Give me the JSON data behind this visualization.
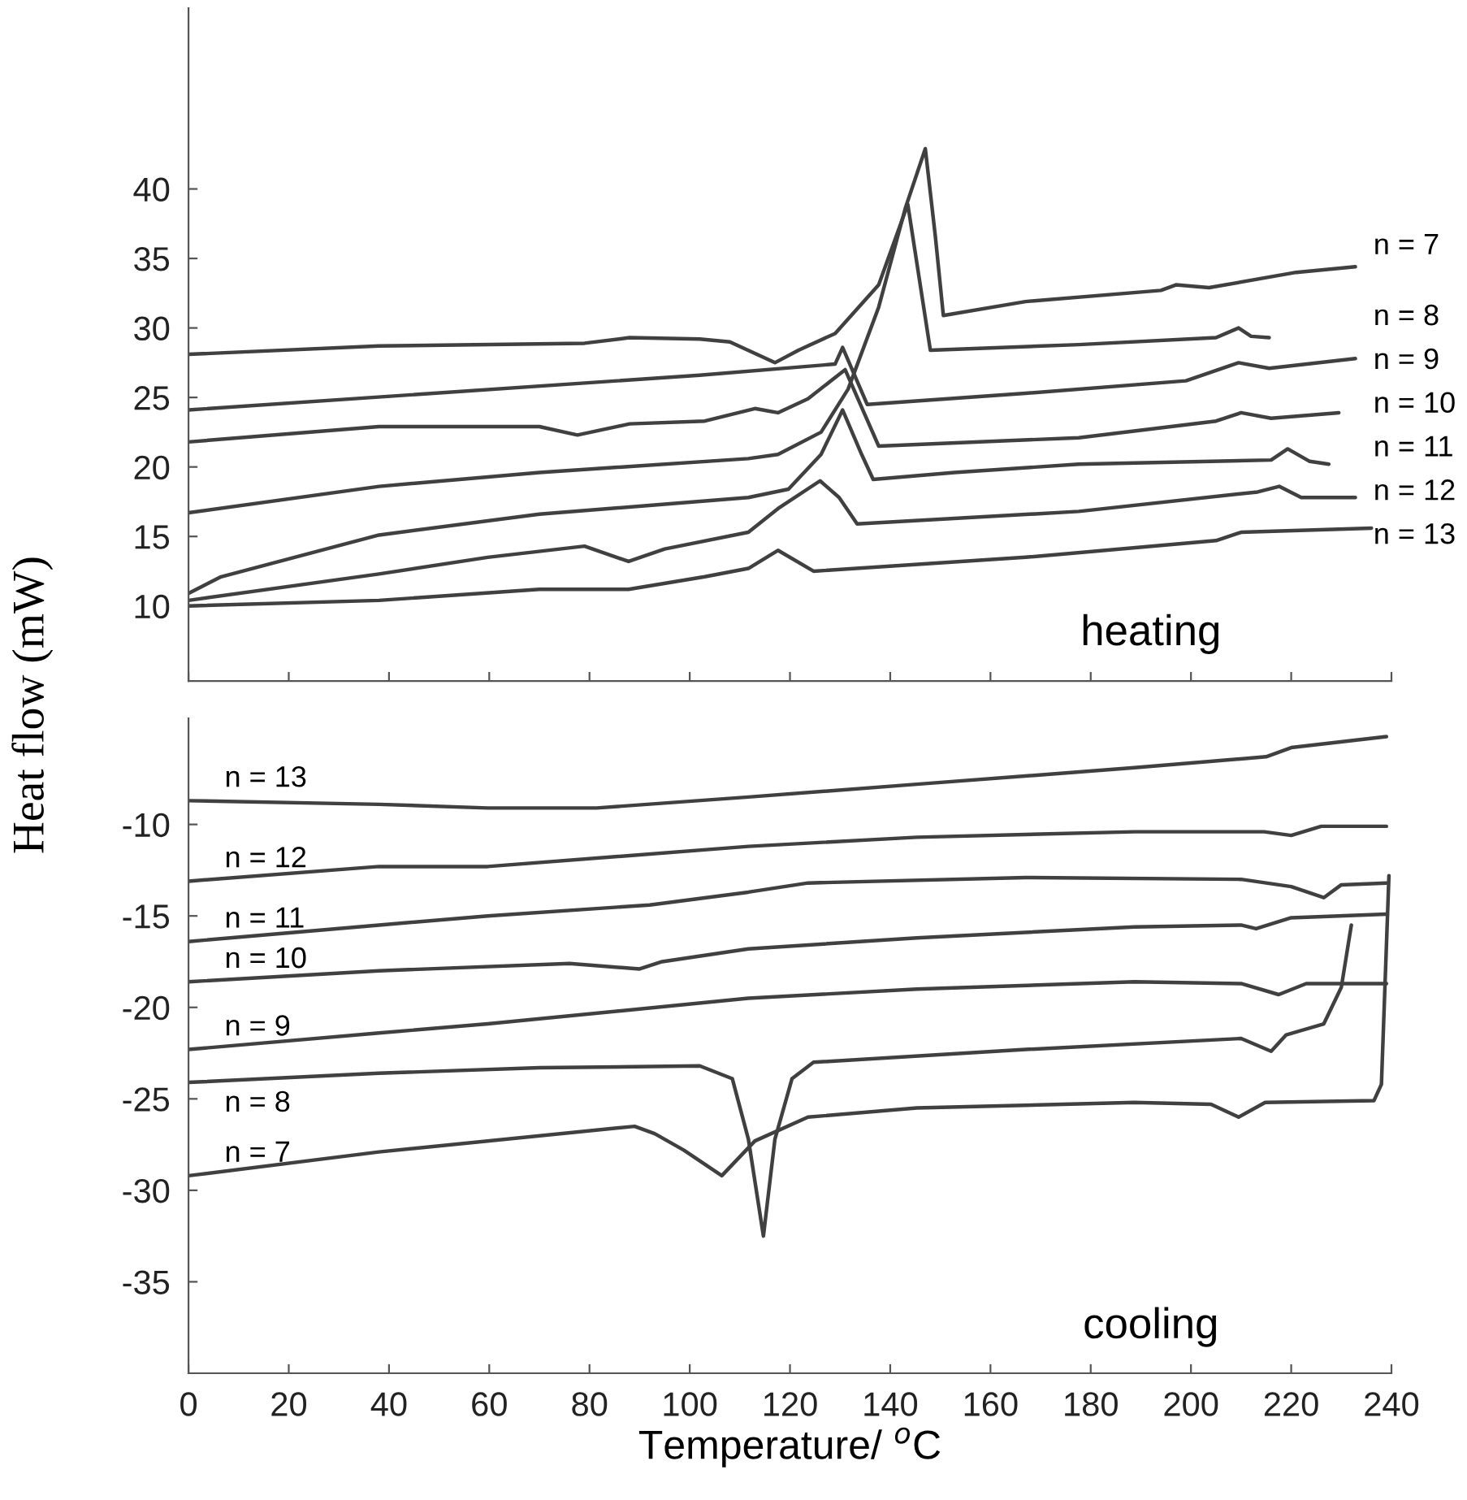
{
  "chart_data": [
    {
      "type": "line",
      "ylabel": "Heat flow (mW)",
      "xlim": [
        0,
        240
      ],
      "ylim": [
        4.6,
        53
      ],
      "xticks": [
        0,
        20,
        40,
        60,
        80,
        100,
        120,
        140,
        160,
        180,
        200,
        220,
        240
      ],
      "yticks": [
        10,
        15,
        20,
        25,
        30,
        35,
        40
      ],
      "tick_labels": "y",
      "grid": false,
      "legend": false,
      "annotations": [
        "heating"
      ],
      "series": [
        {
          "name": "n = 7",
          "color": "#404040",
          "x": [
            0,
            38,
            70,
            111.7,
            117.6,
            126.2,
            131.6,
            137.7,
            143,
            147,
            149,
            150.6,
            167,
            194,
            197,
            203.6,
            221,
            232.8
          ],
          "values": [
            16.7,
            18.6,
            19.6,
            20.6,
            20.9,
            22.5,
            25.6,
            31.5,
            38.6,
            42.9,
            36.6,
            30.9,
            31.9,
            32.7,
            33.1,
            32.9,
            34.0,
            34.4
          ]
        },
        {
          "name": "n = 8",
          "color": "#404040",
          "x": [
            0,
            38,
            79,
            88,
            102,
            108,
            117,
            121.7,
            129,
            137.7,
            143.5,
            148,
            177.6,
            205,
            209.5,
            212,
            215.6
          ],
          "values": [
            28.1,
            28.7,
            28.9,
            29.3,
            29.2,
            29.0,
            27.5,
            28.4,
            29.6,
            33.1,
            38.9,
            28.4,
            28.8,
            29.3,
            30.0,
            29.4,
            29.3
          ]
        },
        {
          "name": "n = 9",
          "color": "#404040",
          "x": [
            0,
            102,
            129,
            130.5,
            135.4,
            167,
            199,
            209.5,
            215.6,
            232.8
          ],
          "values": [
            24.1,
            26.6,
            27.4,
            28.6,
            24.5,
            25.3,
            26.2,
            27.5,
            27.1,
            27.8
          ]
        },
        {
          "name": "n = 10",
          "color": "#404040",
          "x": [
            0,
            38,
            70,
            77.6,
            88,
            103,
            113,
            117.6,
            123.6,
            131,
            137.7,
            177.6,
            205,
            210,
            216,
            229.5
          ],
          "values": [
            21.8,
            22.9,
            22.9,
            22.3,
            23.1,
            23.3,
            24.2,
            23.9,
            24.9,
            27.0,
            21.5,
            22.1,
            23.3,
            23.9,
            23.5,
            23.9
          ]
        },
        {
          "name": "n = 11",
          "color": "#404040",
          "x": [
            0,
            6.5,
            38,
            70,
            111.7,
            119.7,
            126.2,
            130.5,
            134.3,
            136.6,
            152.8,
            177.6,
            216,
            219.3,
            223.7,
            227.5
          ],
          "values": [
            10.9,
            12.1,
            15.1,
            16.6,
            17.8,
            18.4,
            20.9,
            24.1,
            20.9,
            19.1,
            19.6,
            20.2,
            20.5,
            21.3,
            20.4,
            20.2
          ]
        },
        {
          "name": "n = 12",
          "color": "#404040",
          "x": [
            0,
            38,
            59.7,
            79,
            87.8,
            95,
            111.7,
            117.6,
            126,
            129.8,
            133.4,
            177.6,
            213.3,
            217.6,
            222,
            232.8
          ],
          "values": [
            10.4,
            12.3,
            13.5,
            14.3,
            13.2,
            14.1,
            15.3,
            17.0,
            19.0,
            17.8,
            15.9,
            16.8,
            18.2,
            18.6,
            17.8,
            17.8
          ]
        },
        {
          "name": "n = 13",
          "color": "#404040",
          "x": [
            0,
            38,
            70,
            87.8,
            103,
            111.7,
            117.6,
            124.7,
            167,
            205,
            210,
            236
          ],
          "values": [
            10.0,
            10.4,
            11.2,
            11.2,
            12.1,
            12.7,
            14.0,
            12.5,
            13.5,
            14.7,
            15.3,
            15.6
          ]
        }
      ]
    },
    {
      "type": "line",
      "xlabel": "Temperature/ $^{o}$C",
      "xlim": [
        0,
        240
      ],
      "ylim": [
        -40,
        -4.2
      ],
      "xticks": [
        0,
        20,
        40,
        60,
        80,
        100,
        120,
        140,
        160,
        180,
        200,
        220,
        240
      ],
      "yticks": [
        -35,
        -30,
        -25,
        -20,
        -15,
        -10
      ],
      "grid": false,
      "legend": false,
      "annotations": [
        "cooling"
      ],
      "series": [
        {
          "name": "n = 13",
          "color": "#404040",
          "x": [
            0,
            38,
            59.7,
            81.4,
            111.7,
            145.3,
            188.7,
            215,
            220,
            239
          ],
          "values": [
            -8.7,
            -8.9,
            -9.1,
            -9.1,
            -8.5,
            -7.8,
            -6.9,
            -6.3,
            -5.8,
            -5.2
          ]
        },
        {
          "name": "n = 12",
          "color": "#404040",
          "x": [
            0,
            38,
            59.7,
            111.7,
            145.3,
            188.7,
            214.6,
            220,
            226,
            239
          ],
          "values": [
            -13.1,
            -12.3,
            -12.3,
            -11.2,
            -10.7,
            -10.4,
            -10.4,
            -10.6,
            -10.1,
            -10.1
          ]
        },
        {
          "name": "n = 11",
          "color": "#404040",
          "x": [
            0,
            38,
            59.7,
            92,
            111.7,
            123.6,
            167,
            210,
            220,
            226.5,
            230,
            239
          ],
          "values": [
            -16.4,
            -15.5,
            -15.0,
            -14.4,
            -13.7,
            -13.2,
            -12.9,
            -13.0,
            -13.4,
            -14.0,
            -13.3,
            -13.2
          ]
        },
        {
          "name": "n = 10",
          "color": "#404040",
          "x": [
            0,
            38,
            76,
            90,
            94.5,
            111.7,
            145.3,
            188.7,
            210,
            213,
            220,
            239
          ],
          "values": [
            -18.6,
            -18.0,
            -17.6,
            -17.9,
            -17.5,
            -16.8,
            -16.2,
            -15.6,
            -15.5,
            -15.7,
            -15.1,
            -14.9
          ]
        },
        {
          "name": "n = 9",
          "color": "#404040",
          "x": [
            0,
            38,
            59.7,
            111.7,
            145.3,
            188.7,
            210,
            217.5,
            223,
            239
          ],
          "values": [
            -22.3,
            -21.4,
            -20.9,
            -19.5,
            -19.0,
            -18.6,
            -18.7,
            -19.3,
            -18.7,
            -18.7
          ]
        },
        {
          "name": "n = 8",
          "color": "#404040",
          "x": [
            0,
            38,
            70,
            102,
            108.5,
            111.7,
            114.7,
            117,
            120.4,
            124.7,
            167,
            210,
            216,
            219,
            226.5,
            230,
            232
          ],
          "values": [
            -24.1,
            -23.6,
            -23.3,
            -23.2,
            -23.9,
            -27.2,
            -32.5,
            -27.2,
            -23.9,
            -23.0,
            -22.3,
            -21.7,
            -22.4,
            -21.5,
            -20.9,
            -18.9,
            -15.5
          ]
        },
        {
          "name": "n = 7",
          "color": "#404040",
          "x": [
            0,
            38,
            89,
            93,
            98.8,
            106.4,
            113,
            123.6,
            145.3,
            188.7,
            204,
            209.5,
            214.8,
            236.5,
            238,
            239.5
          ],
          "values": [
            -29.2,
            -27.9,
            -26.5,
            -26.9,
            -27.8,
            -29.2,
            -27.3,
            -26.0,
            -25.5,
            -25.2,
            -25.3,
            -26.0,
            -25.2,
            -25.1,
            -24.2,
            -12.8
          ]
        }
      ]
    }
  ]
}
